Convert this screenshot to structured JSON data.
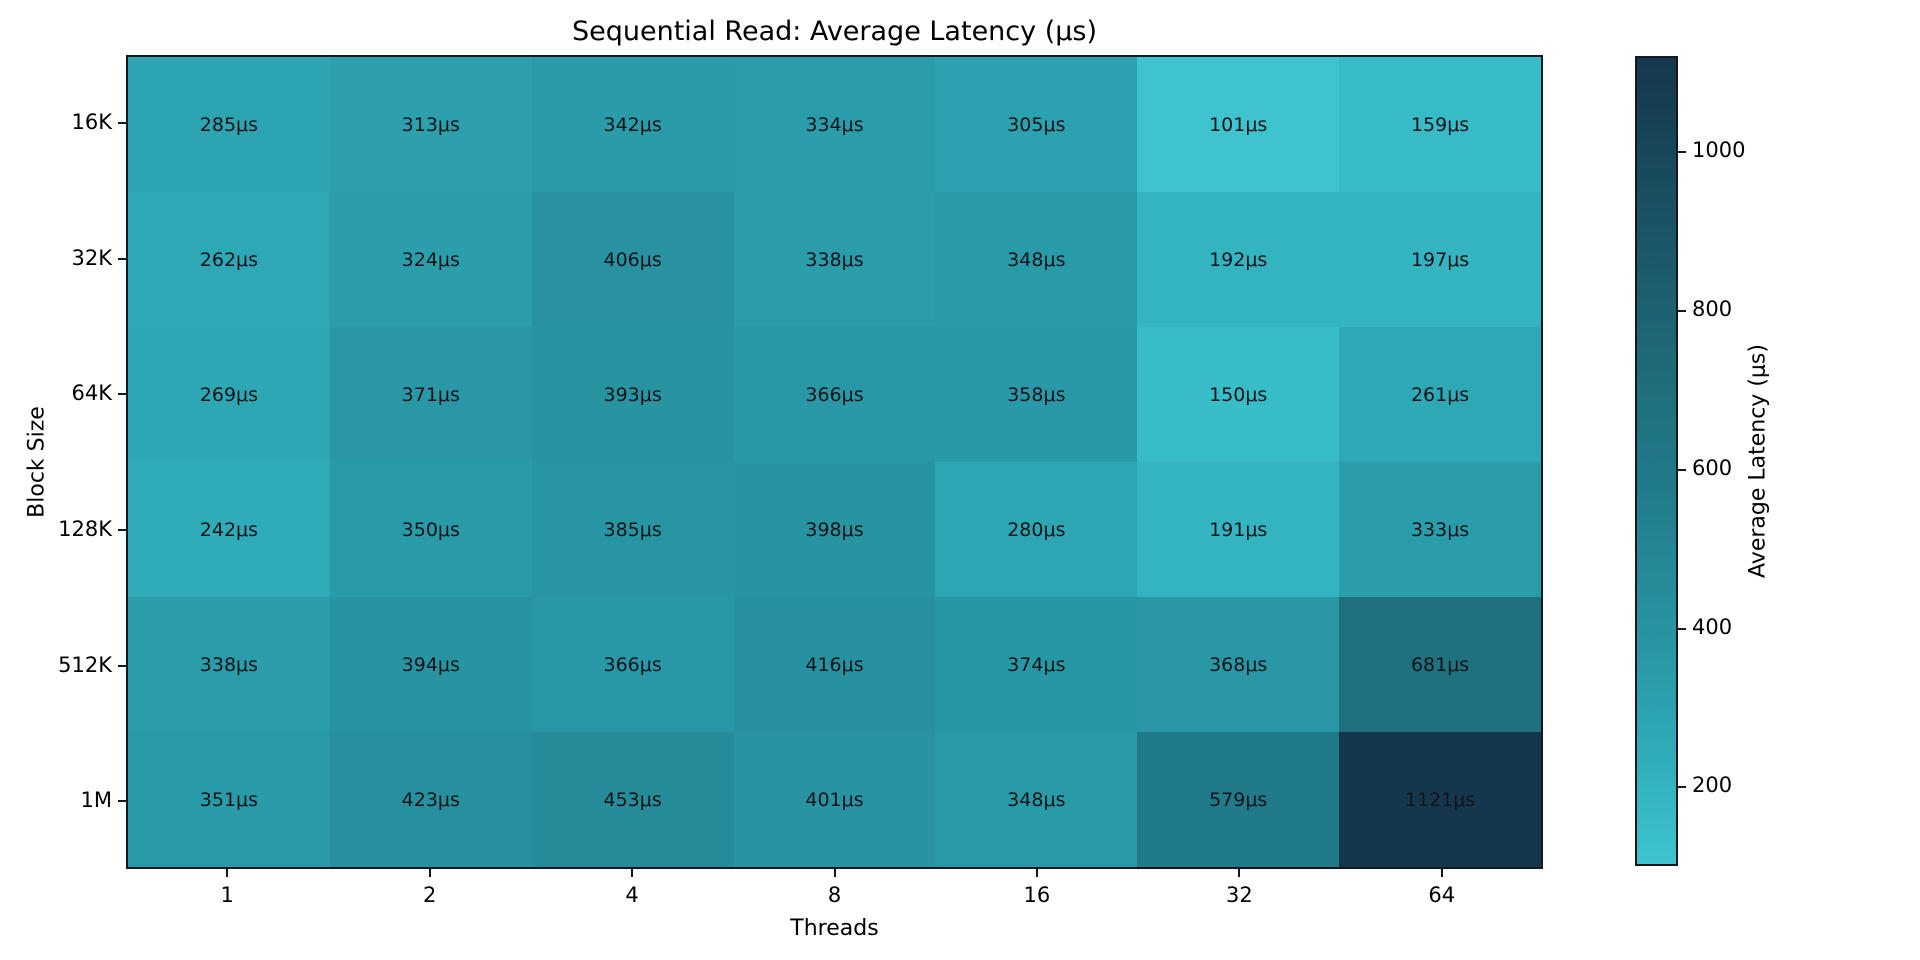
{
  "chart_data": {
    "type": "heatmap",
    "title": "Sequential Read: Average Latency (μs)",
    "xlabel": "Threads",
    "ylabel": "Block Size",
    "x_categories": [
      "1",
      "2",
      "4",
      "8",
      "16",
      "32",
      "64"
    ],
    "y_categories": [
      "16K",
      "32K",
      "64K",
      "128K",
      "512K",
      "1M"
    ],
    "values": [
      [
        285,
        313,
        342,
        334,
        305,
        101,
        159
      ],
      [
        262,
        324,
        406,
        338,
        348,
        192,
        197
      ],
      [
        269,
        371,
        393,
        366,
        358,
        150,
        261
      ],
      [
        242,
        350,
        385,
        398,
        280,
        191,
        333
      ],
      [
        338,
        394,
        366,
        416,
        374,
        368,
        681
      ],
      [
        351,
        423,
        453,
        401,
        348,
        579,
        1121
      ]
    ],
    "cell_label_suffix": "μs",
    "grid": false,
    "legend_position": "right-colorbar",
    "colorbar": {
      "label": "Average Latency (μs)",
      "ticks": [
        200,
        400,
        600,
        800,
        1000
      ],
      "vmin": 101,
      "vmax": 1121
    },
    "colors": {
      "cell_text": "#101418",
      "axis_text": "#000000",
      "spine": "#15181c",
      "stops": [
        {
          "t": 0.0,
          "hex": "#3EC4CF"
        },
        {
          "t": 0.06,
          "hex": "#37BAC6"
        },
        {
          "t": 0.12,
          "hex": "#31AEBB"
        },
        {
          "t": 0.25,
          "hex": "#2999A7"
        },
        {
          "t": 0.35,
          "hex": "#268B99"
        },
        {
          "t": 0.47,
          "hex": "#217A89"
        },
        {
          "t": 0.57,
          "hex": "#20717F"
        },
        {
          "t": 1.0,
          "hex": "#15374D"
        }
      ]
    }
  }
}
